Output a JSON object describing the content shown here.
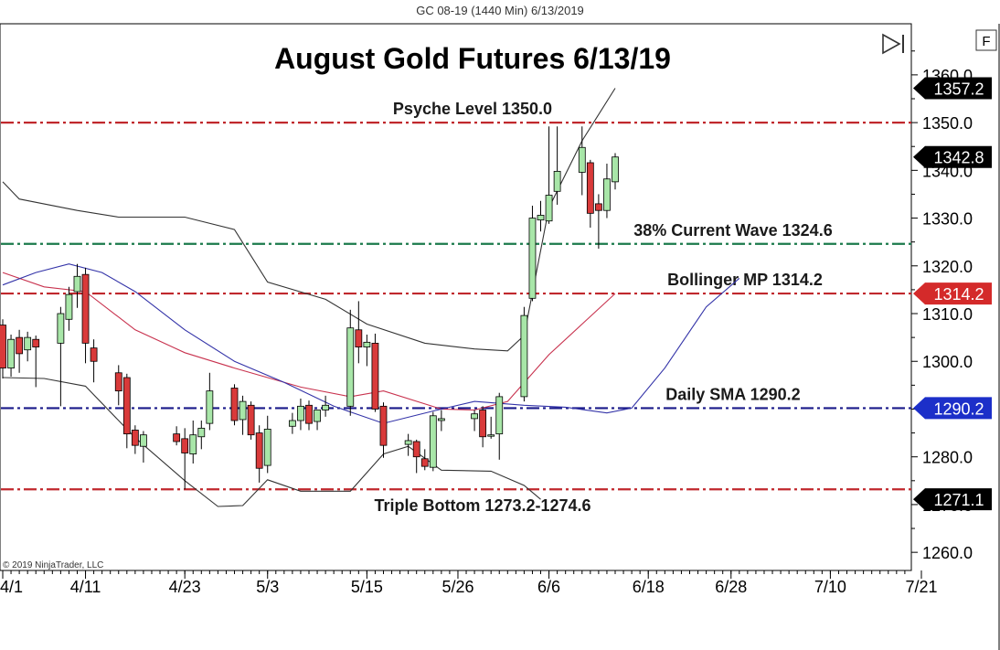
{
  "window": {
    "caption": "GC 08-19 (1440 Min)  6/13/2019",
    "f_button": "F",
    "copyright": "© 2019 NinjaTrader, LLC"
  },
  "chart_data": {
    "type": "candlestick",
    "title": "August Gold Futures 6/13/19",
    "x_ticks": [
      "4/1",
      "4/11",
      "4/23",
      "5/3",
      "5/15",
      "5/26",
      "6/6",
      "6/18",
      "6/28",
      "7/10",
      "7/21"
    ],
    "x_range": [
      "2019-04-01",
      "2019-07-21"
    ],
    "y_ticks": [
      1260.0,
      1270.0,
      1280.0,
      1290.0,
      1300.0,
      1310.0,
      1320.0,
      1330.0,
      1340.0,
      1350.0,
      1360.0
    ],
    "ylim": [
      1256.2,
      1370.7
    ],
    "grid": false,
    "candles": [
      {
        "date": "2019-04-01",
        "o": 1307.6,
        "h": 1308.8,
        "l": 1296.4,
        "c": 1298.6
      },
      {
        "date": "2019-04-02",
        "o": 1298.6,
        "h": 1305.6,
        "l": 1296.8,
        "c": 1304.6
      },
      {
        "date": "2019-04-03",
        "o": 1305.0,
        "h": 1306.6,
        "l": 1297.6,
        "c": 1301.6
      },
      {
        "date": "2019-04-04",
        "o": 1302.4,
        "h": 1306.2,
        "l": 1300.0,
        "c": 1305.0
      },
      {
        "date": "2019-04-05",
        "o": 1304.6,
        "h": 1305.4,
        "l": 1294.6,
        "c": 1303.0
      },
      {
        "date": "2019-04-08",
        "o": 1303.8,
        "h": 1311.4,
        "l": 1290.6,
        "c": 1310.0
      },
      {
        "date": "2019-04-09",
        "o": 1308.8,
        "h": 1315.6,
        "l": 1306.4,
        "c": 1314.0
      },
      {
        "date": "2019-04-10",
        "o": 1314.6,
        "h": 1320.4,
        "l": 1311.2,
        "c": 1317.8
      },
      {
        "date": "2019-04-11",
        "o": 1318.2,
        "h": 1319.6,
        "l": 1299.6,
        "c": 1303.8
      },
      {
        "date": "2019-04-12",
        "o": 1302.8,
        "h": 1304.6,
        "l": 1295.6,
        "c": 1300.0
      },
      {
        "date": "2019-04-15",
        "o": 1297.6,
        "h": 1299.2,
        "l": 1290.8,
        "c": 1293.8
      },
      {
        "date": "2019-04-16",
        "o": 1296.6,
        "h": 1297.4,
        "l": 1281.8,
        "c": 1284.8
      },
      {
        "date": "2019-04-17",
        "o": 1285.6,
        "h": 1286.6,
        "l": 1280.6,
        "c": 1282.4
      },
      {
        "date": "2019-04-18",
        "o": 1282.2,
        "h": 1285.4,
        "l": 1278.8,
        "c": 1284.6
      },
      {
        "date": "2019-04-22",
        "o": 1284.8,
        "h": 1286.4,
        "l": 1282.4,
        "c": 1283.2
      },
      {
        "date": "2019-04-23",
        "o": 1283.8,
        "h": 1286.0,
        "l": 1273.2,
        "c": 1280.8
      },
      {
        "date": "2019-04-24",
        "o": 1280.6,
        "h": 1287.6,
        "l": 1278.6,
        "c": 1284.6
      },
      {
        "date": "2019-04-25",
        "o": 1284.2,
        "h": 1287.6,
        "l": 1281.6,
        "c": 1286.0
      },
      {
        "date": "2019-04-26",
        "o": 1287.0,
        "h": 1297.6,
        "l": 1285.6,
        "c": 1293.8
      },
      {
        "date": "2019-04-29",
        "o": 1294.4,
        "h": 1295.2,
        "l": 1286.6,
        "c": 1287.6
      },
      {
        "date": "2019-04-30",
        "o": 1287.8,
        "h": 1292.8,
        "l": 1284.6,
        "c": 1291.6
      },
      {
        "date": "2019-05-01",
        "o": 1290.8,
        "h": 1291.6,
        "l": 1283.6,
        "c": 1284.6
      },
      {
        "date": "2019-05-02",
        "o": 1285.0,
        "h": 1286.6,
        "l": 1274.6,
        "c": 1277.6
      },
      {
        "date": "2019-05-03",
        "o": 1278.2,
        "h": 1288.6,
        "l": 1276.6,
        "c": 1285.8
      },
      {
        "date": "2019-05-06",
        "o": 1286.4,
        "h": 1289.2,
        "l": 1284.8,
        "c": 1287.6
      },
      {
        "date": "2019-05-07",
        "o": 1287.6,
        "h": 1292.2,
        "l": 1285.6,
        "c": 1290.6
      },
      {
        "date": "2019-05-08",
        "o": 1290.8,
        "h": 1291.8,
        "l": 1285.6,
        "c": 1287.0
      },
      {
        "date": "2019-05-09",
        "o": 1287.4,
        "h": 1289.6,
        "l": 1285.6,
        "c": 1289.8
      },
      {
        "date": "2019-05-10",
        "o": 1289.8,
        "h": 1292.8,
        "l": 1288.4,
        "c": 1290.8
      },
      {
        "date": "2019-05-13",
        "o": 1290.6,
        "h": 1310.8,
        "l": 1288.6,
        "c": 1307.0
      },
      {
        "date": "2019-05-14",
        "o": 1306.6,
        "h": 1312.6,
        "l": 1299.6,
        "c": 1303.0
      },
      {
        "date": "2019-05-15",
        "o": 1303.0,
        "h": 1305.6,
        "l": 1299.0,
        "c": 1304.0
      },
      {
        "date": "2019-05-16",
        "o": 1303.8,
        "h": 1305.8,
        "l": 1289.4,
        "c": 1290.0
      },
      {
        "date": "2019-05-17",
        "o": 1290.6,
        "h": 1291.4,
        "l": 1279.8,
        "c": 1282.4
      },
      {
        "date": "2019-05-20",
        "o": 1282.6,
        "h": 1284.8,
        "l": 1280.2,
        "c": 1283.4
      },
      {
        "date": "2019-05-21",
        "o": 1283.2,
        "h": 1283.6,
        "l": 1276.6,
        "c": 1280.0
      },
      {
        "date": "2019-05-22",
        "o": 1279.6,
        "h": 1281.6,
        "l": 1277.2,
        "c": 1278.0
      },
      {
        "date": "2019-05-23",
        "o": 1277.8,
        "h": 1289.4,
        "l": 1277.0,
        "c": 1288.6
      },
      {
        "date": "2019-05-24",
        "o": 1287.6,
        "h": 1289.8,
        "l": 1285.4,
        "c": 1288.0
      },
      {
        "date": "2019-05-28",
        "o": 1288.0,
        "h": 1289.8,
        "l": 1285.4,
        "c": 1289.0
      },
      {
        "date": "2019-05-29",
        "o": 1289.8,
        "h": 1290.6,
        "l": 1282.0,
        "c": 1284.2
      },
      {
        "date": "2019-05-30",
        "o": 1284.4,
        "h": 1288.4,
        "l": 1283.8,
        "c": 1284.6
      },
      {
        "date": "2019-05-31",
        "o": 1284.8,
        "h": 1293.4,
        "l": 1279.4,
        "c": 1292.6
      },
      {
        "date": "2019-06-03",
        "o": 1292.6,
        "h": 1311.4,
        "l": 1291.6,
        "c": 1309.6
      },
      {
        "date": "2019-06-04",
        "o": 1313.2,
        "h": 1332.6,
        "l": 1312.6,
        "c": 1330.0
      },
      {
        "date": "2019-06-05",
        "o": 1329.6,
        "h": 1333.6,
        "l": 1327.2,
        "c": 1330.6
      },
      {
        "date": "2019-06-06",
        "o": 1329.4,
        "h": 1349.2,
        "l": 1328.8,
        "c": 1334.8
      },
      {
        "date": "2019-06-07",
        "o": 1335.6,
        "h": 1349.2,
        "l": 1332.8,
        "c": 1339.8
      },
      {
        "date": "2019-06-10",
        "o": 1339.6,
        "h": 1349.2,
        "l": 1334.8,
        "c": 1344.8
      },
      {
        "date": "2019-06-11",
        "o": 1341.6,
        "h": 1342.2,
        "l": 1328.0,
        "c": 1331.0
      },
      {
        "date": "2019-06-12",
        "o": 1333.0,
        "h": 1335.0,
        "l": 1323.6,
        "c": 1331.6
      },
      {
        "date": "2019-06-13",
        "o": 1331.6,
        "h": 1341.4,
        "l": 1330.0,
        "c": 1338.2
      },
      {
        "date": "2019-06-14",
        "o": 1337.6,
        "h": 1343.6,
        "l": 1336.0,
        "c": 1342.8
      }
    ],
    "indicator_lines": [
      {
        "name": "Bollinger upper",
        "color": "#333333",
        "points": [
          [
            "2019-04-01",
            1337.6
          ],
          [
            "2019-04-03",
            1334.0
          ],
          [
            "2019-04-10",
            1331.6
          ],
          [
            "2019-04-15",
            1330.2
          ],
          [
            "2019-04-23",
            1330.2
          ],
          [
            "2019-04-29",
            1327.6
          ],
          [
            "2019-05-03",
            1316.6
          ],
          [
            "2019-05-10",
            1313.0
          ],
          [
            "2019-05-15",
            1307.8
          ],
          [
            "2019-05-22",
            1303.8
          ],
          [
            "2019-05-28",
            1302.6
          ],
          [
            "2019-06-01",
            1302.2
          ],
          [
            "2019-06-03",
            1305.4
          ],
          [
            "2019-06-06",
            1332.2
          ],
          [
            "2019-06-10",
            1346.2
          ],
          [
            "2019-06-14",
            1357.2
          ]
        ]
      },
      {
        "name": "Bollinger lower",
        "color": "#333333",
        "points": [
          [
            "2019-04-01",
            1296.6
          ],
          [
            "2019-04-06",
            1296.4
          ],
          [
            "2019-04-11",
            1294.8
          ],
          [
            "2019-04-17",
            1284.0
          ],
          [
            "2019-04-23",
            1275.0
          ],
          [
            "2019-04-27",
            1269.6
          ],
          [
            "2019-04-30",
            1269.8
          ],
          [
            "2019-05-03",
            1275.2
          ],
          [
            "2019-05-07",
            1272.8
          ],
          [
            "2019-05-13",
            1272.8
          ],
          [
            "2019-05-17",
            1280.6
          ],
          [
            "2019-05-20",
            1282.2
          ],
          [
            "2019-05-24",
            1277.2
          ],
          [
            "2019-05-30",
            1277.0
          ],
          [
            "2019-06-03",
            1274.0
          ],
          [
            "2019-06-05",
            1271.1
          ]
        ]
      },
      {
        "name": "Bollinger MP",
        "color": "#c8324e",
        "points": [
          [
            "2019-04-01",
            1318.6
          ],
          [
            "2019-04-06",
            1315.6
          ],
          [
            "2019-04-11",
            1314.6
          ],
          [
            "2019-04-17",
            1306.6
          ],
          [
            "2019-04-23",
            1301.8
          ],
          [
            "2019-04-29",
            1298.6
          ],
          [
            "2019-05-07",
            1294.6
          ],
          [
            "2019-05-13",
            1292.6
          ],
          [
            "2019-05-17",
            1293.8
          ],
          [
            "2019-05-24",
            1290.0
          ],
          [
            "2019-05-28",
            1289.8
          ],
          [
            "2019-06-01",
            1291.6
          ],
          [
            "2019-06-06",
            1301.4
          ],
          [
            "2019-06-10",
            1307.8
          ],
          [
            "2019-06-14",
            1314.2
          ]
        ]
      },
      {
        "name": "Daily SMA",
        "color": "#3333a8",
        "points": [
          [
            "2019-04-01",
            1316.0
          ],
          [
            "2019-04-05",
            1318.6
          ],
          [
            "2019-04-09",
            1320.4
          ],
          [
            "2019-04-13",
            1318.6
          ],
          [
            "2019-04-17",
            1314.6
          ],
          [
            "2019-04-23",
            1306.6
          ],
          [
            "2019-04-29",
            1300.0
          ],
          [
            "2019-05-05",
            1295.6
          ],
          [
            "2019-05-11",
            1290.6
          ],
          [
            "2019-05-17",
            1287.0
          ],
          [
            "2019-05-23",
            1289.6
          ],
          [
            "2019-05-28",
            1291.6
          ],
          [
            "2019-06-03",
            1290.8
          ],
          [
            "2019-06-08",
            1290.4
          ],
          [
            "2019-06-13",
            1289.2
          ],
          [
            "2019-06-16",
            1290.2
          ],
          [
            "2019-06-20",
            1298.6
          ],
          [
            "2019-06-25",
            1311.4
          ],
          [
            "2019-06-29",
            1317.4
          ]
        ]
      }
    ],
    "levels": [
      {
        "value": 1350.0,
        "color": "#c0282d",
        "label": "Psyche Level 1350.0",
        "badge": ""
      },
      {
        "value": 1324.6,
        "color": "#1b7a4b",
        "label": "38% Current Wave 1324.6",
        "badge": ""
      },
      {
        "value": 1314.2,
        "color": "#c0282d",
        "label": "Bollinger MP 1314.2",
        "badge": "1314.2"
      },
      {
        "value": 1290.2,
        "color": "#1a1a8a",
        "label": "Daily SMA 1290.2",
        "badge": "1290.2"
      },
      {
        "value": 1273.2,
        "color": "#c0282d",
        "label": "Triple Bottom 1273.2-1274.6",
        "badge": ""
      }
    ],
    "price_badges": [
      {
        "value": 1357.2,
        "text": "1357.2",
        "color": "#000000"
      },
      {
        "value": 1342.8,
        "text": "1342.8",
        "color": "#000000"
      },
      {
        "value": 1314.2,
        "text": "1314.2",
        "color": "#d42a2a"
      },
      {
        "value": 1290.2,
        "text": "1290.2",
        "color": "#1c2fc9"
      },
      {
        "value": 1271.1,
        "text": "1271.1",
        "color": "#000000"
      }
    ],
    "colors": {
      "up_body": "#a8e6a8",
      "down_body": "#d93a3a",
      "wick": "#000000"
    }
  }
}
